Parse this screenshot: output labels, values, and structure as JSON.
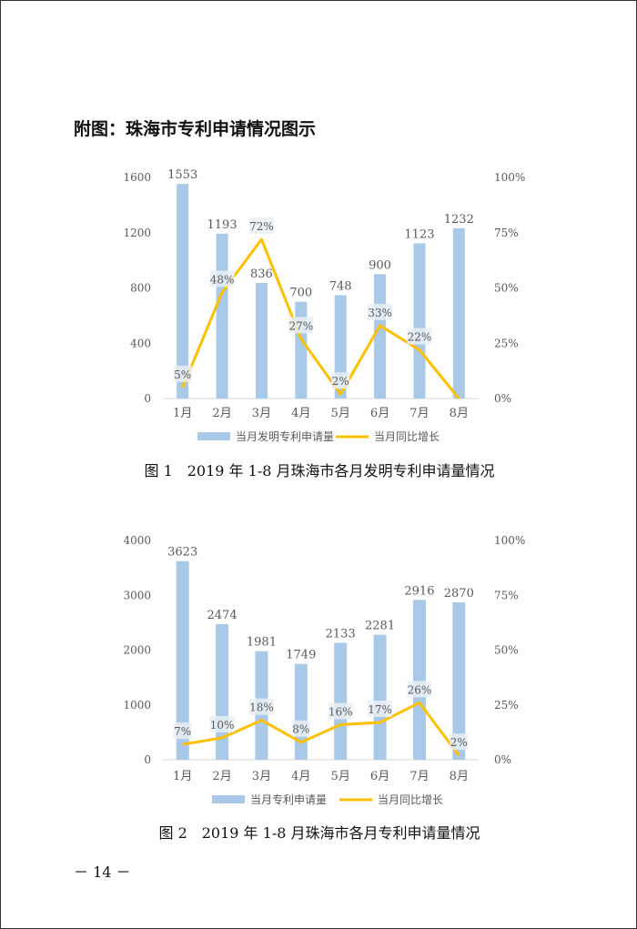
{
  "heading": "附图：珠海市专利申请情况图示",
  "page_number": "－ 14 －",
  "colors": {
    "bar": "#a9c9e8",
    "line": "#ffc000",
    "axis": "#d9d9d9",
    "label_bg": "#e9eef3",
    "text": "#595959"
  },
  "chart_data": [
    {
      "type": "bar",
      "caption": "图 1　2019 年 1-8 月珠海市各月发明专利申请量情况",
      "categories": [
        "1月",
        "2月",
        "3月",
        "4月",
        "5月",
        "6月",
        "7月",
        "8月"
      ],
      "y_ticks": [
        "0",
        "400",
        "800",
        "1200",
        "1600"
      ],
      "y2_ticks": [
        "0%",
        "25%",
        "50%",
        "75%",
        "100%"
      ],
      "ylim": [
        0,
        1600
      ],
      "y2lim": [
        0,
        100
      ],
      "series": [
        {
          "name": "当月发明专利申请量",
          "type": "bar",
          "values": [
            1553,
            1193,
            836,
            700,
            748,
            900,
            1123,
            1232
          ],
          "labels": [
            "1553",
            "1193",
            "836",
            "700",
            "748",
            "900",
            "1123",
            "1232"
          ]
        },
        {
          "name": "当月同比增长",
          "type": "line",
          "axis": "right",
          "values": [
            5,
            48,
            72,
            27,
            2,
            33,
            22,
            0
          ],
          "labels": [
            "5%",
            "48%",
            "72%",
            "27%",
            "2%",
            "33%",
            "22%",
            ""
          ]
        }
      ],
      "legend": "bottom"
    },
    {
      "type": "bar",
      "caption": "图 2　2019 年 1-8 月珠海市各月专利申请量情况",
      "categories": [
        "1月",
        "2月",
        "3月",
        "4月",
        "5月",
        "6月",
        "7月",
        "8月"
      ],
      "y_ticks": [
        "0",
        "1000",
        "2000",
        "3000",
        "4000"
      ],
      "y2_ticks": [
        "0%",
        "25%",
        "50%",
        "75%",
        "100%"
      ],
      "ylim": [
        0,
        4000
      ],
      "y2lim": [
        0,
        100
      ],
      "series": [
        {
          "name": "当月专利申请量",
          "type": "bar",
          "values": [
            3623,
            2474,
            1981,
            1749,
            2133,
            2281,
            2916,
            2870
          ],
          "labels": [
            "3623",
            "2474",
            "1981",
            "1749",
            "2133",
            "2281",
            "2916",
            "2870"
          ]
        },
        {
          "name": "当月同比增长",
          "type": "line",
          "axis": "right",
          "values": [
            7,
            10,
            18,
            8,
            16,
            17,
            26,
            2
          ],
          "labels": [
            "7%",
            "10%",
            "18%",
            "8%",
            "16%",
            "17%",
            "26%",
            "2%"
          ]
        }
      ],
      "legend": "bottom"
    }
  ]
}
